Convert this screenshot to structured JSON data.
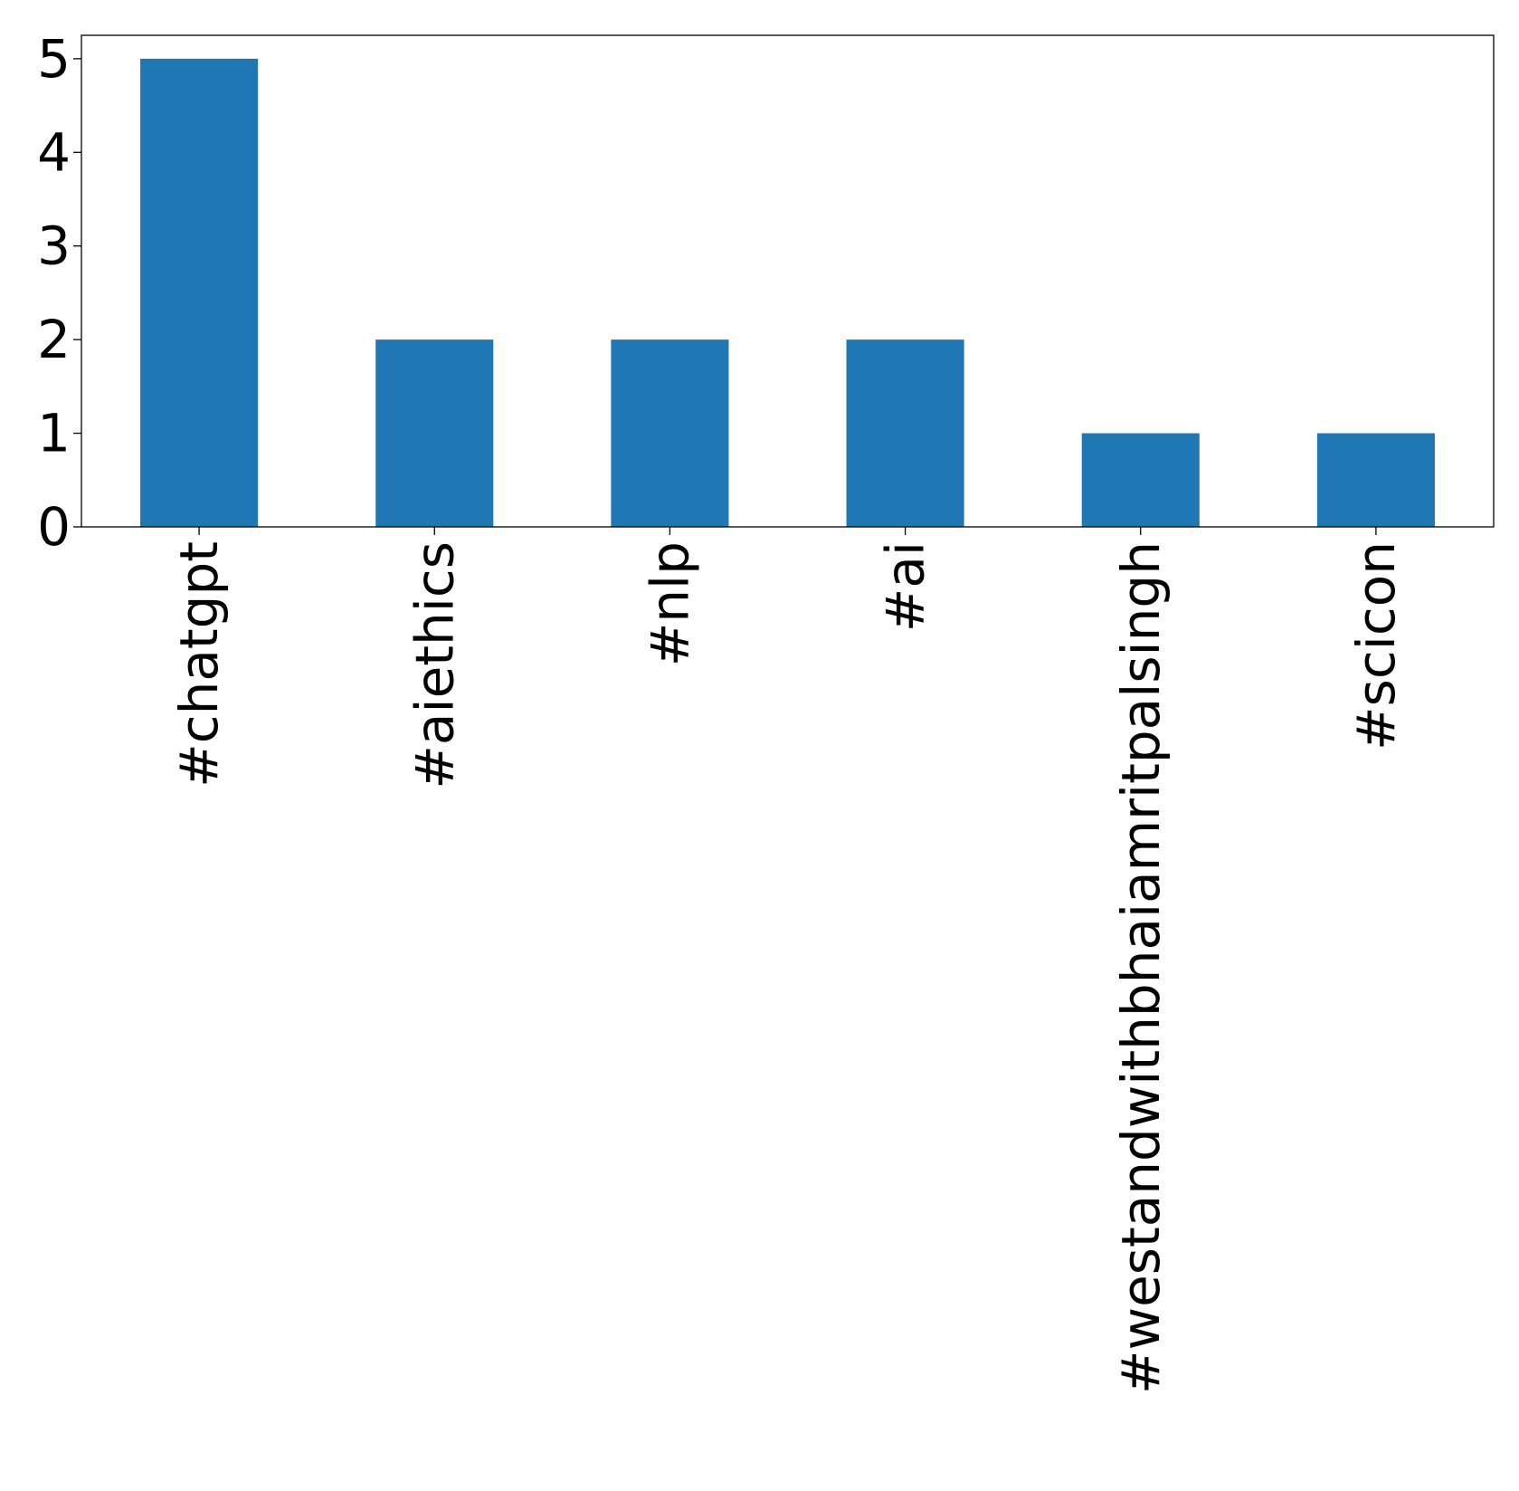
{
  "chart_data": {
    "type": "bar",
    "title": "",
    "xlabel": "",
    "ylabel": "",
    "categories": [
      "#chatgpt",
      "#aiethics",
      "#nlp",
      "#ai",
      "#westandwithbhaiamritpalsingh",
      "#scicon"
    ],
    "values": [
      5,
      2,
      2,
      2,
      1,
      1
    ],
    "ylim": [
      0,
      5.25
    ],
    "yticks": [
      "0",
      "1",
      "2",
      "3",
      "4",
      "5"
    ],
    "bar_color": "#1f77b4",
    "grid": false,
    "legend": "none"
  }
}
